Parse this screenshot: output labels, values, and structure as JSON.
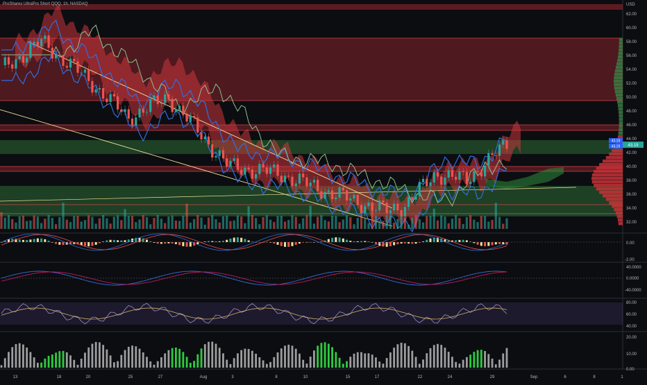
{
  "header": {
    "title": "ProShares UltraPro Short QQQ, 1h, NASDAQ"
  },
  "price_axis": {
    "currency": "USD",
    "ticks": [
      "62.00",
      "60.00",
      "58.00",
      "56.00",
      "54.00",
      "52.00",
      "50.00",
      "48.00",
      "46.00",
      "44.00",
      "42.00",
      "40.00",
      "38.00",
      "36.00",
      "34.00",
      "32.00"
    ],
    "last_price": "43.19",
    "badge_upper": "43.19",
    "badge_lower": "43.19"
  },
  "time_axis": {
    "labels": [
      "13",
      "18",
      "20",
      "25",
      "27",
      "Aug",
      "3",
      "8",
      "10",
      "15",
      "17",
      "22",
      "24",
      "29",
      "Sep",
      "6",
      "8",
      "1"
    ]
  },
  "oscillators": {
    "macd_ticks": [
      "0.00",
      "-2.00"
    ],
    "momentum_ticks": [
      "40.0000",
      "0.0000",
      "-40.0000"
    ],
    "rsi_ticks": [
      "80.00",
      "60.00",
      "40.00"
    ],
    "volume_ticks": [
      "20.00",
      "10.00",
      "0.00"
    ]
  },
  "colors": {
    "up": "#26a69a",
    "down": "#ef5350",
    "cloud_red": "#c0393f",
    "cloud_green": "#2e6b35",
    "trendline": "#f5e19a",
    "band_blue": "#2f6fe0"
  },
  "chart_data": {
    "type": "candlestick",
    "title": "ProShares UltraPro Short QQQ, 1h, NASDAQ",
    "y_range": [
      31,
      64
    ],
    "zones": {
      "red": [
        [
          49.5,
          58.5
        ],
        [
          45.2,
          46.0
        ],
        [
          39.3,
          40.0
        ]
      ],
      "green": [
        [
          41.8,
          43.8
        ],
        [
          32.8,
          37.2
        ]
      ]
    },
    "x_labels": [
      "13",
      "18",
      "20",
      "25",
      "27",
      "Aug",
      "3",
      "8",
      "10",
      "15",
      "17",
      "22",
      "24",
      "29",
      "Sep",
      "6",
      "8",
      "1"
    ],
    "last_close": 43.19
  }
}
